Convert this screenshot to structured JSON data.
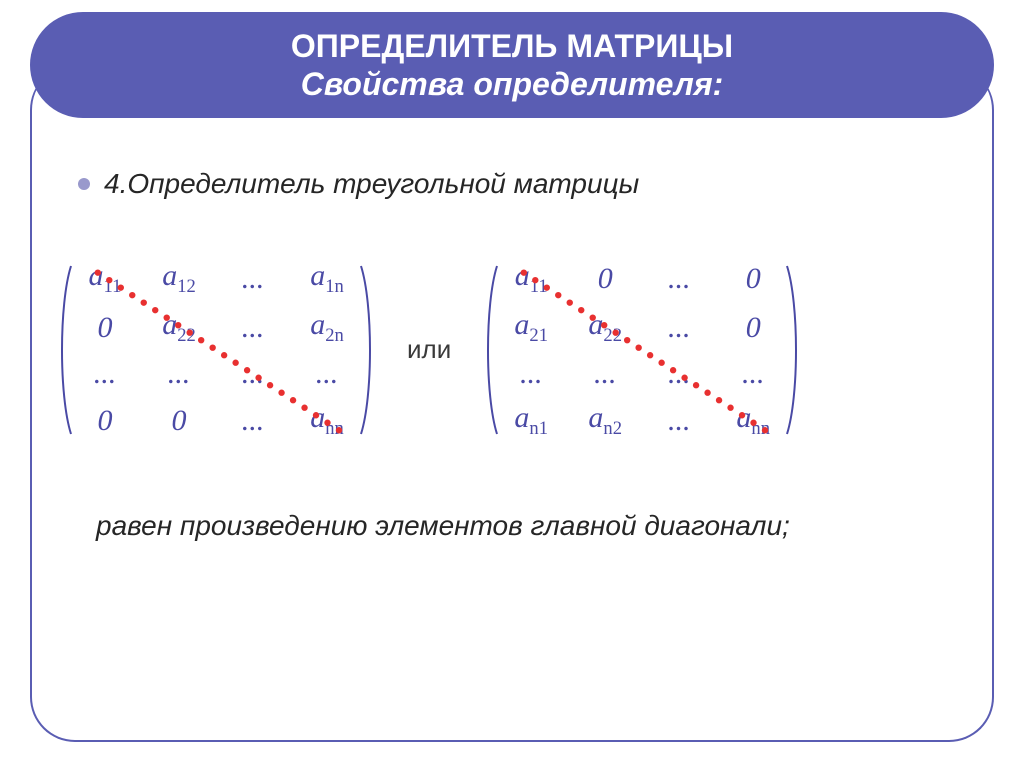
{
  "title": {
    "line1": "ОПРЕДЕЛИТЕЛЬ  МАТРИЦЫ",
    "line2": "Свойства  определителя:"
  },
  "bullet": {
    "number": "4.",
    "text": "Определитель треугольной матрицы"
  },
  "matrices": {
    "or_label": "или",
    "text_color": "#4a4aa5",
    "paren_color": "#4a4aa5",
    "left": {
      "rows": [
        [
          "a|11",
          "a|12",
          "...",
          "a|1n"
        ],
        [
          "0",
          "a|22",
          "...",
          "a|2n"
        ],
        [
          "...",
          "...",
          "...",
          "..."
        ],
        [
          "0",
          "0",
          "...",
          "a|nn"
        ]
      ],
      "diagonal": {
        "color": "#e83030",
        "dot_radius": 3.2,
        "dot_count": 22
      }
    },
    "right": {
      "rows": [
        [
          "a|11",
          "0",
          "...",
          "0"
        ],
        [
          "a|21",
          "a|22",
          "...",
          "0"
        ],
        [
          "...",
          "...",
          "...",
          "..."
        ],
        [
          "a|n1",
          "a|n2",
          "...",
          "a|nn"
        ]
      ],
      "diagonal": {
        "color": "#e83030",
        "dot_radius": 3.2,
        "dot_count": 22
      }
    }
  },
  "conclusion": "равен произведению элементов главной диагонали;",
  "colors": {
    "title_bar_bg": "#5a5db3",
    "title_text": "#ffffff",
    "frame_border": "#5a5db3",
    "bullet_dot": "#9999cc"
  }
}
